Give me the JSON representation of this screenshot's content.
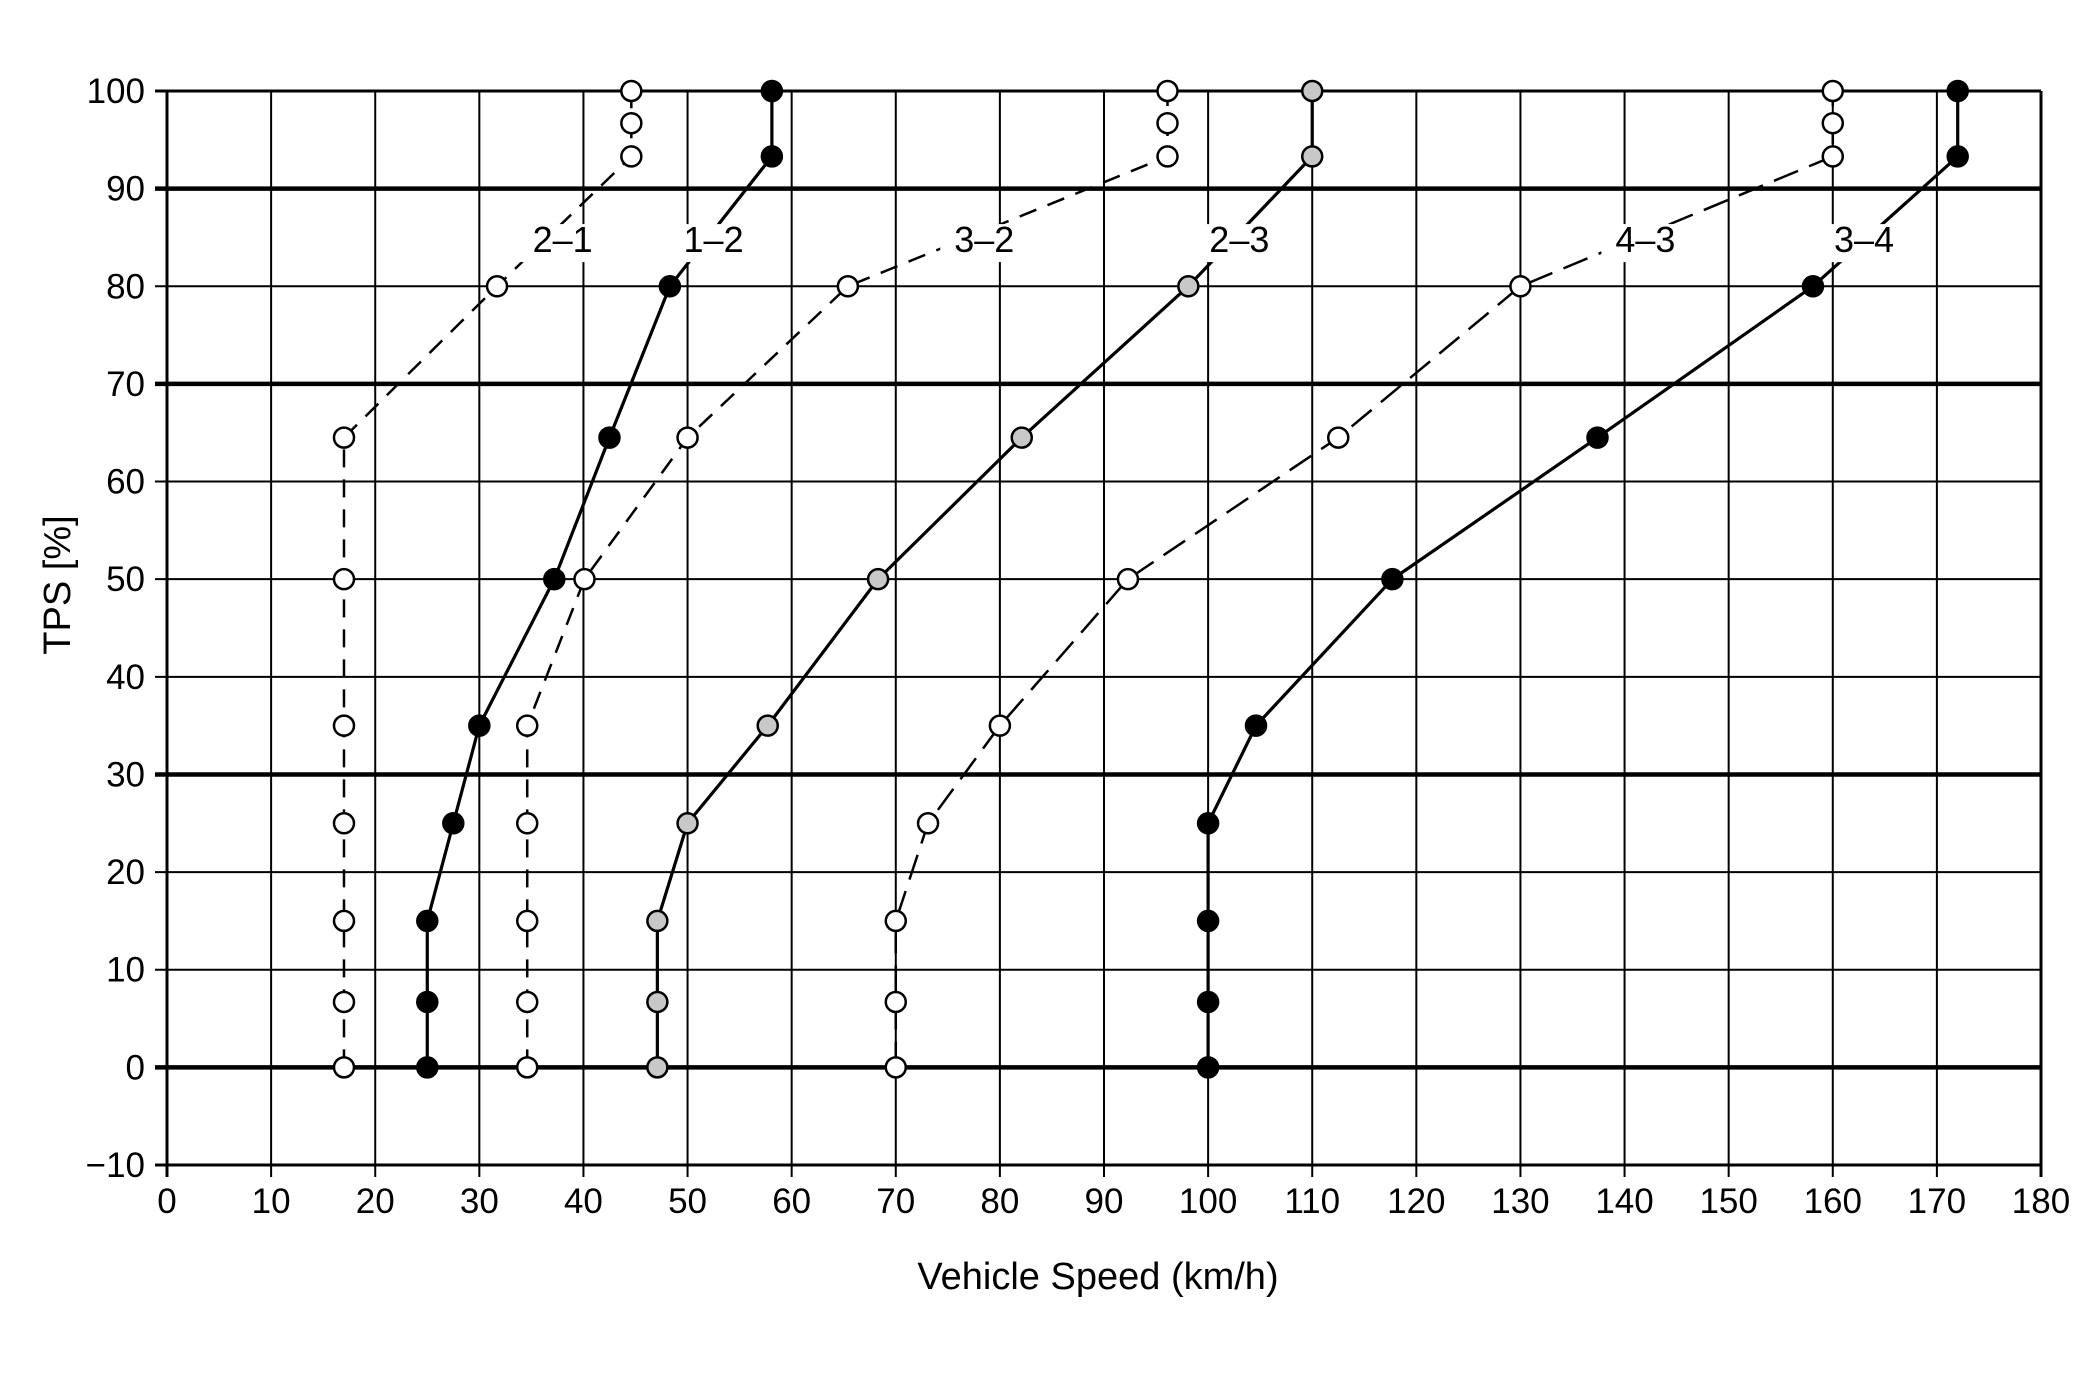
{
  "chart_data": {
    "type": "line",
    "xlabel": "Vehicle Speed (km/h)",
    "ylabel": "TPS [%]",
    "xlim": [
      0,
      180
    ],
    "ylim": [
      -10,
      100
    ],
    "x_ticks": [
      "0",
      "10",
      "20",
      "30",
      "40",
      "50",
      "60",
      "70",
      "80",
      "90",
      "100",
      "110",
      "120",
      "130",
      "140",
      "150",
      "160",
      "170",
      "180"
    ],
    "y_ticks": [
      "100",
      "90",
      "80",
      "70",
      "60",
      "50",
      "40",
      "30",
      "20",
      "10",
      "0",
      "−10"
    ],
    "heavy_gridlines_y": [
      90,
      70,
      30,
      0
    ],
    "grid": true,
    "colors": {
      "ink": "#000000",
      "open_marker": "#ffffff",
      "shaded_marker": "#c8c8c8"
    },
    "series": [
      {
        "name": "2–1",
        "style": "dashed",
        "marker": "open",
        "points": [
          [
            17,
            0
          ],
          [
            17,
            6.7
          ],
          [
            17,
            15
          ],
          [
            17,
            25
          ],
          [
            17,
            35
          ],
          [
            17,
            50
          ],
          [
            17,
            64.5
          ],
          [
            31.7,
            80
          ],
          [
            44.6,
            93.3
          ],
          [
            44.6,
            96.7
          ],
          [
            44.6,
            100
          ]
        ]
      },
      {
        "name": "1–2",
        "style": "solid",
        "marker": "filled",
        "points": [
          [
            25,
            0
          ],
          [
            25,
            6.7
          ],
          [
            25,
            15
          ],
          [
            27.5,
            25
          ],
          [
            30,
            35
          ],
          [
            37.2,
            50
          ],
          [
            42.5,
            64.5
          ],
          [
            48.3,
            80
          ],
          [
            58.1,
            93.3
          ],
          [
            58.1,
            100
          ]
        ]
      },
      {
        "name": "3–2",
        "style": "dashed",
        "marker": "open",
        "points": [
          [
            34.6,
            0
          ],
          [
            34.6,
            6.7
          ],
          [
            34.6,
            15
          ],
          [
            34.6,
            25
          ],
          [
            34.6,
            35
          ],
          [
            40.1,
            50
          ],
          [
            50,
            64.5
          ],
          [
            65.4,
            80
          ],
          [
            96.1,
            93.3
          ],
          [
            96.1,
            96.7
          ],
          [
            96.1,
            100
          ]
        ]
      },
      {
        "name": "2–3",
        "style": "solid",
        "marker": "shaded",
        "points": [
          [
            47.1,
            0
          ],
          [
            47.1,
            6.7
          ],
          [
            47.1,
            15
          ],
          [
            50,
            25
          ],
          [
            57.7,
            35
          ],
          [
            68.3,
            50
          ],
          [
            82.1,
            64.5
          ],
          [
            98.1,
            80
          ],
          [
            110,
            93.3
          ],
          [
            110,
            100
          ]
        ]
      },
      {
        "name": "4–3",
        "style": "dashed",
        "marker": "open",
        "points": [
          [
            70,
            0
          ],
          [
            70,
            6.7
          ],
          [
            70,
            15
          ],
          [
            73.1,
            25
          ],
          [
            80,
            35
          ],
          [
            92.3,
            50
          ],
          [
            112.5,
            64.5
          ],
          [
            130,
            80
          ],
          [
            160,
            93.3
          ],
          [
            160,
            96.7
          ],
          [
            160,
            100
          ]
        ]
      },
      {
        "name": "3–4",
        "style": "solid",
        "marker": "filled",
        "points": [
          [
            100,
            0
          ],
          [
            100,
            6.7
          ],
          [
            100,
            15
          ],
          [
            100,
            25
          ],
          [
            104.6,
            35
          ],
          [
            117.7,
            50
          ],
          [
            137.4,
            64.5
          ],
          [
            158.1,
            80
          ],
          [
            172,
            93.3
          ],
          [
            172,
            100
          ]
        ]
      }
    ]
  }
}
